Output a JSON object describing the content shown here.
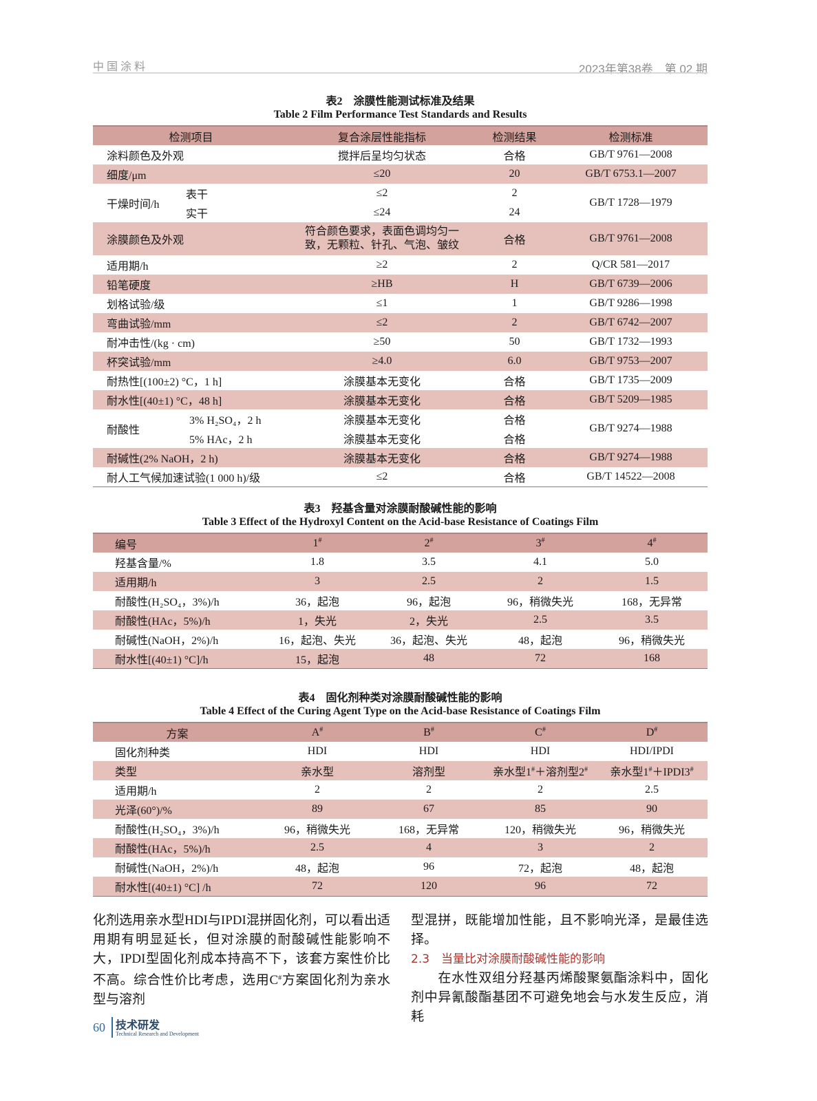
{
  "header": {
    "journal": "中国涂料",
    "issue": "2023年第38卷　第 02 期"
  },
  "colors": {
    "header_row": "#d4a29c",
    "stripe_row": "#e6c0bb",
    "section_heading": "#b2302a",
    "footer_accent": "#2e6aa0"
  },
  "table2": {
    "caption_cn": "表2　涂膜性能测试标准及结果",
    "caption_en": "Table 2   Film Performance Test Standards and Results",
    "headers": [
      "检测项目",
      "复合涂层性能指标",
      "检测结果",
      "检测标准"
    ],
    "rows": [
      {
        "item": "涂料颜色及外观",
        "spec": "搅拌后呈均匀状态",
        "result": "合格",
        "standard": "GB/T 9761—2008"
      },
      {
        "item": "细度/μm",
        "spec": "≤20",
        "result": "20",
        "standard": "GB/T 6753.1—2007"
      },
      {
        "item": "干燥时间/h",
        "subs": [
          {
            "sub": "表干",
            "spec": "≤2",
            "result": "2"
          },
          {
            "sub": "实干",
            "spec": "≤24",
            "result": "24"
          }
        ],
        "standard": "GB/T 1728—1979"
      },
      {
        "item": "涂膜颜色及外观",
        "spec": "符合颜色要求，表面色调均匀一致，无颗粒、针孔、气泡、皱纹",
        "result": "合格",
        "standard": "GB/T 9761—2008"
      },
      {
        "item": "适用期/h",
        "spec": "≥2",
        "result": "2",
        "standard": "Q/CR 581—2017"
      },
      {
        "item": "铅笔硬度",
        "spec": "≥HB",
        "result": "H",
        "standard": "GB/T 6739—2006"
      },
      {
        "item": "划格试验/级",
        "spec": "≤1",
        "result": "1",
        "standard": "GB/T 9286—1998"
      },
      {
        "item": "弯曲试验/mm",
        "spec": "≤2",
        "result": "2",
        "standard": "GB/T 6742—2007"
      },
      {
        "item": "耐冲击性/(kg · cm)",
        "spec": "≥50",
        "result": "50",
        "standard": "GB/T 1732—1993"
      },
      {
        "item": "杯突试验/mm",
        "spec": "≥4.0",
        "result": "6.0",
        "standard": "GB/T 9753—2007"
      },
      {
        "item": "耐热性[(100±2) °C，1 h]",
        "spec": "涂膜基本无变化",
        "result": "合格",
        "standard": "GB/T 1735—2009"
      },
      {
        "item": "耐水性[(40±1) °C，48 h]",
        "spec": "涂膜基本无变化",
        "result": "合格",
        "standard": "GB/T 5209—1985"
      },
      {
        "item": "耐酸性",
        "subs": [
          {
            "sub": "3% H₂SO₄，2 h",
            "spec": "涂膜基本无变化",
            "result": "合格"
          },
          {
            "sub": "5% HAc，2 h",
            "spec": "涂膜基本无变化",
            "result": "合格"
          }
        ],
        "standard": "GB/T 9274—1988"
      },
      {
        "item": "耐碱性(2% NaOH，2 h)",
        "spec": "涂膜基本无变化",
        "result": "合格",
        "standard": "GB/T 9274—1988"
      },
      {
        "item": "耐人工气候加速试验(1 000 h)/级",
        "spec": "≤2",
        "result": "合格",
        "standard": "GB/T 14522—2008"
      }
    ]
  },
  "table3": {
    "caption_cn": "表3　羟基含量对涂膜耐酸碱性能的影响",
    "caption_en": "Table 3   Effect of the Hydroxyl Content on the Acid-base Resistance of Coatings Film",
    "headers": [
      "编号",
      "1#",
      "2#",
      "3#",
      "4#"
    ],
    "rows": [
      [
        "羟基含量/%",
        "1.8",
        "3.5",
        "4.1",
        "5.0"
      ],
      [
        "适用期/h",
        "3",
        "2.5",
        "2",
        "1.5"
      ],
      [
        "耐酸性(H₂SO₄，3%)/h",
        "36，起泡",
        "96，起泡",
        "96，稍微失光",
        "168，无异常"
      ],
      [
        "耐酸性(HAc，5%)/h",
        "1，失光",
        "2，失光",
        "2.5",
        "3.5"
      ],
      [
        "耐碱性(NaOH，2%)/h",
        "16，起泡、失光",
        "36，起泡、失光",
        "48，起泡",
        "96，稍微失光"
      ],
      [
        "耐水性[(40±1) °C]/h",
        "15，起泡",
        "48",
        "72",
        "168"
      ]
    ]
  },
  "table4": {
    "caption_cn": "表4　固化剂种类对涂膜耐酸碱性能的影响",
    "caption_en": "Table 4   Effect of the Curing Agent Type on the Acid-base Resistance of Coatings Film",
    "headers": [
      "方案",
      "A#",
      "B#",
      "C#",
      "D#"
    ],
    "rows": [
      [
        "固化剂种类",
        "HDI",
        "HDI",
        "HDI",
        "HDI/IPDI"
      ],
      [
        "类型",
        "亲水型",
        "溶剂型",
        "亲水型1#＋溶剂型2#",
        "亲水型1#＋IPDI3#"
      ],
      [
        "适用期/h",
        "2",
        "2",
        "2",
        "2.5"
      ],
      [
        "光泽(60°)/%",
        "89",
        "67",
        "85",
        "90"
      ],
      [
        "耐酸性(H₂SO₄，3%)/h",
        "96，稍微失光",
        "168，无异常",
        "120，稍微失光",
        "96，稍微失光"
      ],
      [
        "耐酸性(HAc，5%)/h",
        "2.5",
        "4",
        "3",
        "2"
      ],
      [
        "耐碱性(NaOH，2%)/h",
        "48，起泡",
        "96",
        "72，起泡",
        "48，起泡"
      ],
      [
        "耐水性[(40±1) °C] /h",
        "72",
        "120",
        "96",
        "72"
      ]
    ]
  },
  "body": {
    "left": "化剂选用亲水型HDI与IPDI混拼固化剂，可以看出适用期有明显延长，但对涂膜的耐酸碱性能影响不大，IPDI型固化剂成本持高不下，该套方案性价比不高。综合性价比考虑，选用C#方案固化剂为亲水型与溶剂",
    "right_p1": "型混拼，既能增加性能，且不影响光泽，是最佳选择。",
    "section": "2.3　当量比对涂膜耐酸碱性能的影响",
    "right_p2": "　　在水性双组分羟基丙烯酸聚氨酯涂料中，固化剂中异氰酸酯基团不可避免地会与水发生反应，消耗"
  },
  "footer": {
    "page": "60",
    "section_cn": "技术研发",
    "section_en": "Technical Research and Development"
  }
}
